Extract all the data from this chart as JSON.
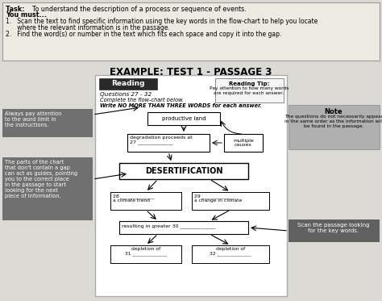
{
  "title_text": "EXAMPLE: TEST 1 - PASSAGE 3",
  "task_line1": "Task:   To understand the description of a process or sequence of events.",
  "task_line2": "You must...",
  "task_line3": "1.   Scan the text to find specific information using the key words in the flow-chart to help you locate",
  "task_line4": "      where the relevant information is in the passage.",
  "task_line5": "2.   Find the word(s) or number in the text which fits each space and copy it into the gap.",
  "reading_header": "Reading",
  "questions_text": "Questions 27 - 32",
  "complete_text": "Complete the flow-chart below.",
  "write_text": "Write NO MORE THAN THREE WORDS for each answer.",
  "tip_title": "Reading Tip:",
  "tip_body": "Pay attention to how many words\nare required for each answer.",
  "note_title": "Note",
  "note_body": "The questions do not necessarily appear\nin the same order as the information will\nbe found in the passage.",
  "left_note1": "Always pay attention\nto the word limit in\nthe instructions.",
  "left_note2": "The parts of the chart\nthat don't contain a gap\ncan act as guides, pointing\nyou to the correct place\nin the passage to start\nlooking for the next\npiece of information.",
  "right_note": "Scan the passage looking\nfor the key words.",
  "box_productive": "productive land",
  "box_degradation": "degradation proceeds at\n27 ______________",
  "box_multiple": "multiple\ncauses",
  "box_desertification": "DESERTIFICATION",
  "box_28": "28 ______________\na climate trend",
  "box_29": "29 ______________\na change in climate",
  "box_resulting": "resulting in greater 30 ______________",
  "box_31": "depletion of\n31 ______________",
  "box_32": "depletion of\n32 ______________",
  "bg_color": "#c8c8c8",
  "page_bg": "#e8e6e0",
  "box_bg": "#ffffff",
  "left_note_bg": "#707070",
  "note_bg": "#b0b0b0",
  "scan_note_bg": "#606060",
  "reading_header_bg": "#2a2a2a"
}
